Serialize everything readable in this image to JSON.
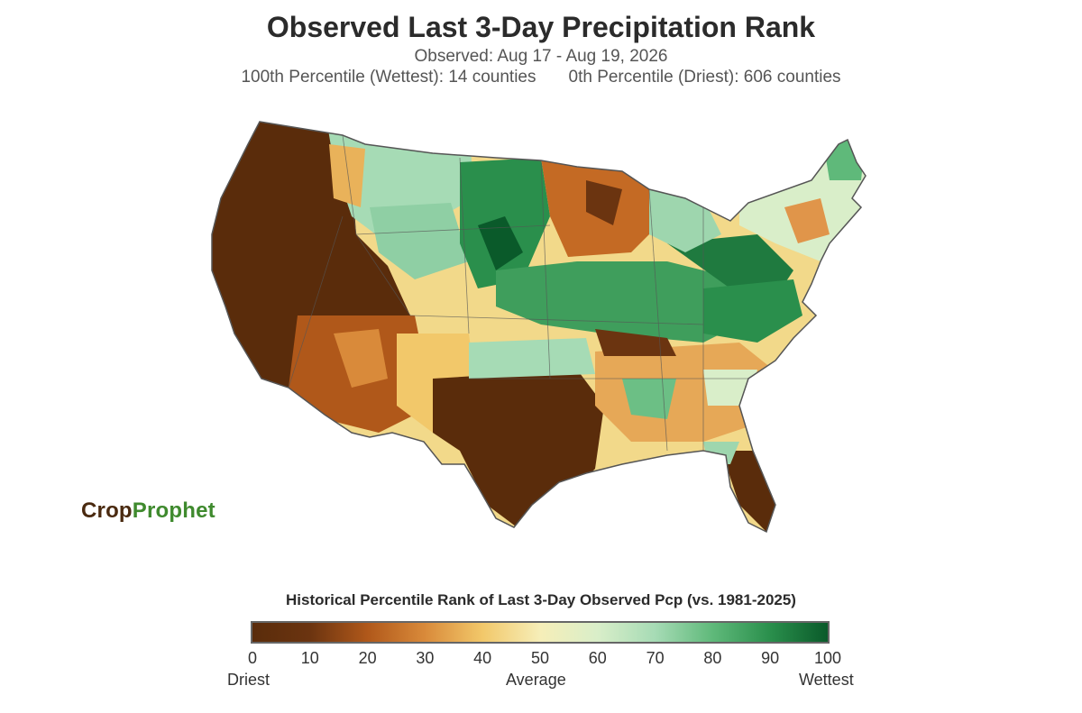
{
  "header": {
    "title": "Observed Last 3-Day Precipitation Rank",
    "observed": "Observed: Aug 17 - Aug 19, 2026",
    "wettest": "100th Percentile (Wettest): 14 counties",
    "driest": "0th Percentile (Driest): 606 counties"
  },
  "logo": {
    "part1": "Crop",
    "part2": "Prophet"
  },
  "legend": {
    "title": "Historical Percentile Rank of Last 3-Day Observed Pcp (vs. 1981-2025)",
    "ticks": [
      "0",
      "10",
      "20",
      "30",
      "40",
      "50",
      "60",
      "70",
      "80",
      "90",
      "100"
    ],
    "left_label": "Driest",
    "center_label": "Average",
    "right_label": "Wettest"
  },
  "colors": {
    "driest": "#5a2c0b",
    "dry": "#d98a3a",
    "average": "#f6eeb8",
    "wet": "#5fb97a",
    "wettest": "#0a5a2a",
    "border": "#555555"
  }
}
